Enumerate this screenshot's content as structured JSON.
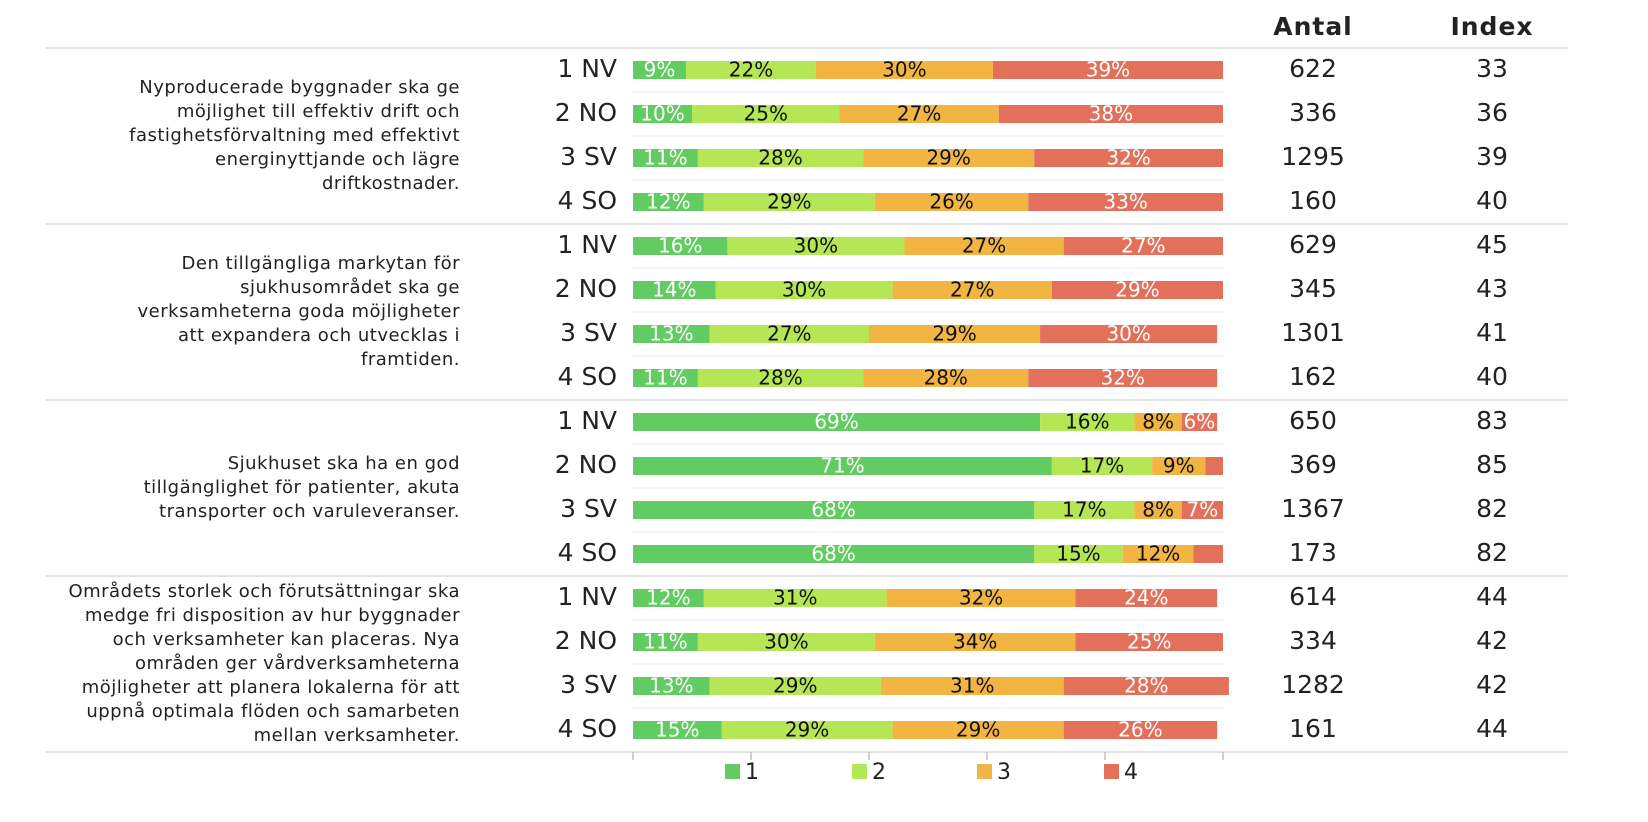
{
  "chart_data": {
    "type": "bar",
    "orientation": "horizontal",
    "stacked": true,
    "categories": [
      "1 NV",
      "2 NO",
      "3 SV",
      "4 SO",
      "1 NV",
      "2 NO",
      "3 SV",
      "4 SO",
      "1 NV",
      "2 NO",
      "3 SV",
      "4 SO",
      "1 NV",
      "2 NO",
      "3 SV",
      "4 SO"
    ],
    "groups": [
      {
        "lines": [
          "Nyproducerade byggnader ska ge",
          "möjlighet till effektiv drift och",
          "fastighetsförvaltning med effektivt",
          "energinyttjande och lägre",
          "driftkostnader."
        ]
      },
      {
        "lines": [
          "Den tillgängliga markytan för",
          "sjukhusområdet ska ge",
          "verksamheterna goda möjligheter",
          "att expandera och utvecklas i",
          "framtiden."
        ]
      },
      {
        "lines": [
          "Sjukhuset ska ha en god",
          "tillgänglighet för patienter, akuta",
          "transporter och varuleveranser."
        ]
      },
      {
        "lines": [
          "Områdets storlek och förutsättningar ska",
          "medge fri disposition av hur byggnader",
          "och verksamheter kan placeras. Nya",
          "områden ger vårdverksamheterna",
          "möjligheter att planera lokalerna för att",
          "uppnå optimala flöden och samarbeten",
          "mellan verksamheter."
        ]
      }
    ],
    "series": [
      {
        "name": "1",
        "color": "#62cc62",
        "label_color": "#ffffff",
        "values": [
          9,
          10,
          11,
          12,
          16,
          14,
          13,
          11,
          69,
          71,
          68,
          68,
          12,
          11,
          13,
          15
        ],
        "value_labels": [
          "9%",
          "10%",
          "11%",
          "12%",
          "16%",
          "14%",
          "13%",
          "11%",
          "69%",
          "71%",
          "68%",
          "68%",
          "12%",
          "11%",
          "13%",
          "15%"
        ]
      },
      {
        "name": "2",
        "color": "#b5e655",
        "label_color": "#111111",
        "values": [
          22,
          25,
          28,
          29,
          30,
          30,
          27,
          28,
          16,
          17,
          17,
          15,
          31,
          30,
          29,
          29
        ],
        "value_labels": [
          "22%",
          "25%",
          "28%",
          "29%",
          "30%",
          "30%",
          "27%",
          "28%",
          "16%",
          "17%",
          "17%",
          "15%",
          "31%",
          "30%",
          "29%",
          "29%"
        ]
      },
      {
        "name": "3",
        "color": "#f2b543",
        "label_color": "#111111",
        "values": [
          30,
          27,
          29,
          26,
          27,
          27,
          29,
          28,
          8,
          9,
          8,
          12,
          32,
          34,
          31,
          29
        ],
        "value_labels": [
          "30%",
          "27%",
          "29%",
          "26%",
          "27%",
          "27%",
          "29%",
          "28%",
          "8%",
          "9%",
          "8%",
          "12%",
          "32%",
          "34%",
          "31%",
          "29%"
        ]
      },
      {
        "name": "4",
        "color": "#e2705a",
        "label_color": "#ffffff",
        "values": [
          39,
          38,
          32,
          33,
          27,
          29,
          30,
          32,
          6,
          3,
          7,
          5,
          24,
          25,
          28,
          26
        ],
        "value_labels": [
          "39%",
          "38%",
          "32%",
          "33%",
          "27%",
          "29%",
          "30%",
          "32%",
          "6%",
          null,
          "7%",
          null,
          "24%",
          "25%",
          "28%",
          "26%"
        ]
      }
    ],
    "columns": [
      {
        "name": "Antal",
        "values": [
          622,
          336,
          1295,
          160,
          629,
          345,
          1301,
          162,
          650,
          369,
          1367,
          173,
          614,
          334,
          1282,
          161
        ]
      },
      {
        "name": "Index",
        "values": [
          33,
          36,
          39,
          40,
          45,
          43,
          41,
          40,
          83,
          85,
          82,
          82,
          44,
          42,
          42,
          44
        ]
      }
    ],
    "xlim": [
      0,
      100
    ],
    "xticks": [
      0,
      20,
      40,
      60,
      80,
      100
    ],
    "legend": "bottom"
  }
}
